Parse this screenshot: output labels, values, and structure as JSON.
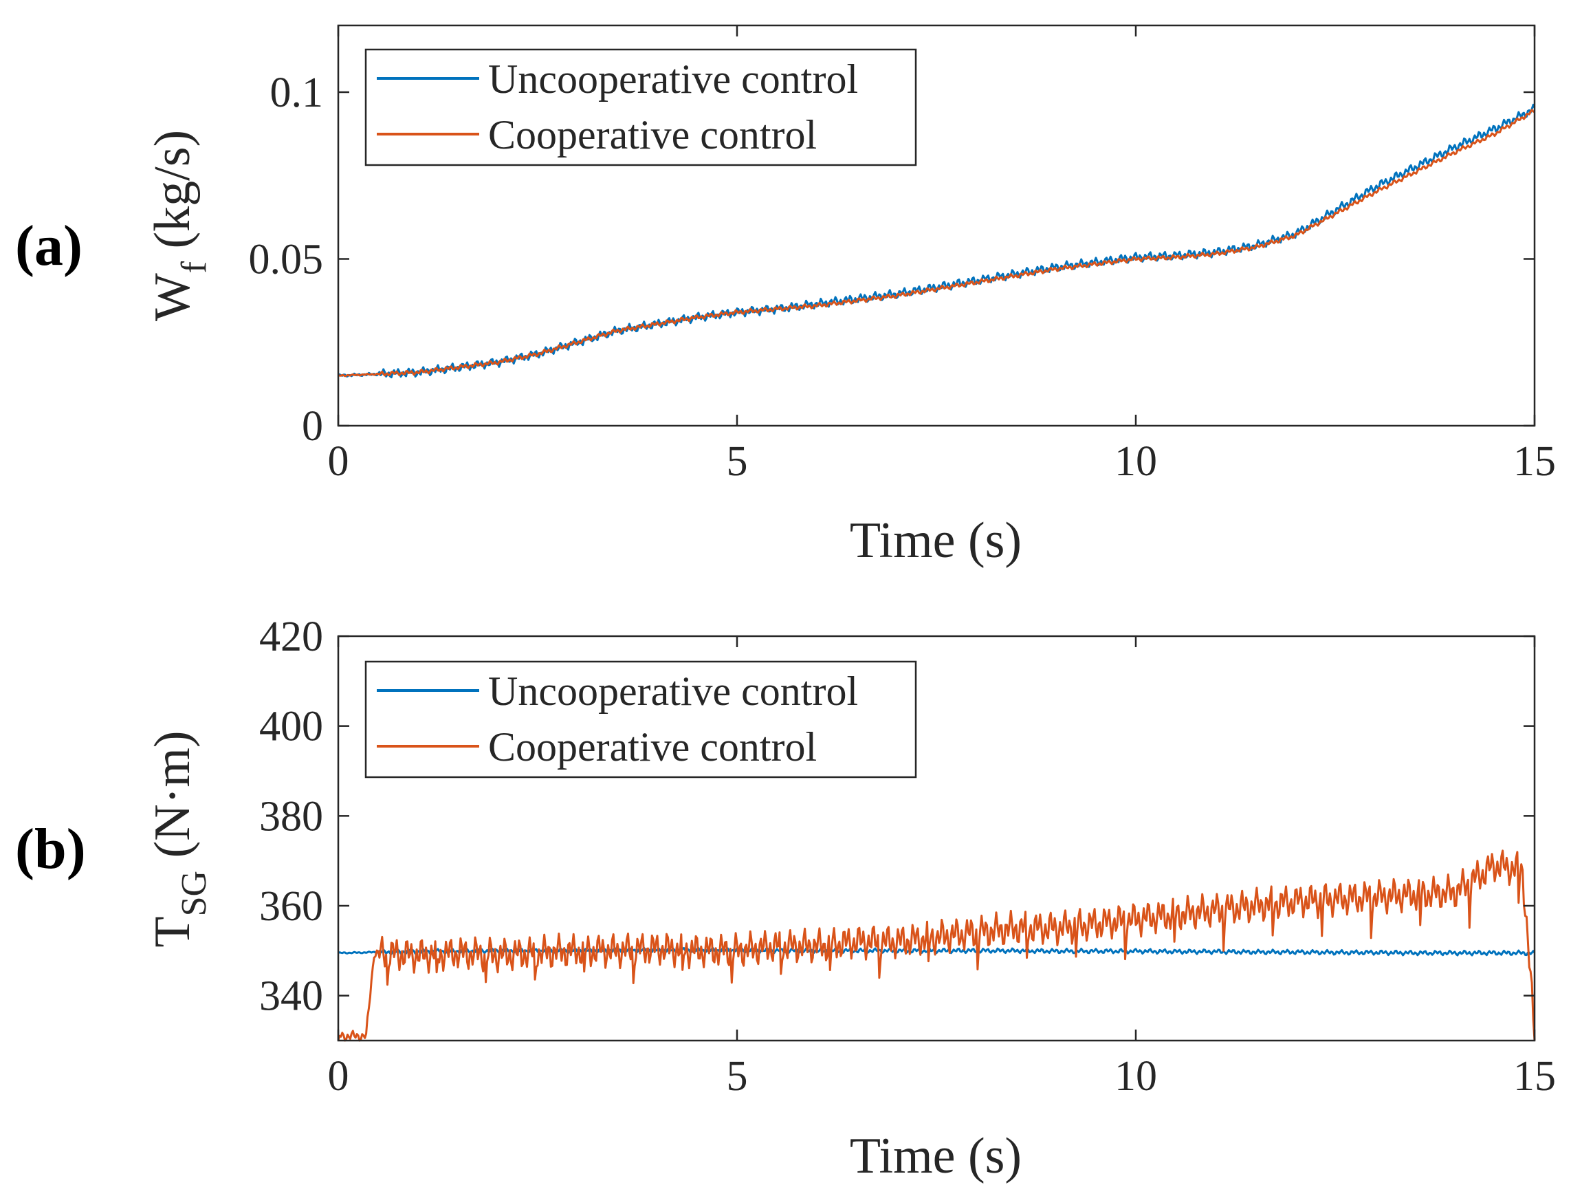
{
  "figure": {
    "panels": [
      "(a)",
      "(b)"
    ]
  },
  "chart_data": [
    {
      "type": "line",
      "panel_label": "(a)",
      "title": "",
      "xlabel": "Time (s)",
      "ylabel_main": "W",
      "ylabel_sub": "f",
      "ylabel_unit": " (kg/s)",
      "xlim": [
        0,
        15
      ],
      "ylim": [
        0,
        0.12
      ],
      "xticks": [
        0,
        5,
        10,
        15
      ],
      "xtick_labels": [
        "0",
        "5",
        "10",
        "15"
      ],
      "yticks": [
        0,
        0.05,
        0.1
      ],
      "ytick_labels": [
        "0",
        "0.05",
        "0.1"
      ],
      "grid": false,
      "legend_position": "top-left",
      "x": [
        0,
        0.5,
        1,
        1.5,
        2,
        2.5,
        3,
        3.5,
        4,
        4.5,
        5,
        5.5,
        6,
        6.5,
        7,
        7.5,
        8,
        8.5,
        9,
        9.5,
        10,
        10.5,
        11,
        11.5,
        12,
        12.5,
        13,
        13.5,
        14,
        14.5,
        15
      ],
      "series": [
        {
          "name": "Uncooperative control",
          "color": "#0072BD",
          "values": [
            0.015,
            0.0155,
            0.016,
            0.0175,
            0.019,
            0.0215,
            0.025,
            0.0285,
            0.0305,
            0.0325,
            0.034,
            0.035,
            0.0365,
            0.038,
            0.0395,
            0.0415,
            0.0435,
            0.0455,
            0.0475,
            0.049,
            0.0505,
            0.051,
            0.052,
            0.054,
            0.0575,
            0.0645,
            0.0715,
            0.0775,
            0.0835,
            0.089,
            0.095
          ]
        },
        {
          "name": "Cooperative control",
          "color": "#D95319",
          "values": [
            0.015,
            0.0155,
            0.016,
            0.0175,
            0.019,
            0.0215,
            0.025,
            0.0285,
            0.0305,
            0.0325,
            0.034,
            0.035,
            0.036,
            0.0375,
            0.039,
            0.041,
            0.043,
            0.045,
            0.047,
            0.0485,
            0.05,
            0.0505,
            0.0515,
            0.0535,
            0.057,
            0.0635,
            0.07,
            0.076,
            0.082,
            0.0875,
            0.0945
          ]
        }
      ]
    },
    {
      "type": "line",
      "panel_label": "(b)",
      "title": "",
      "xlabel": "Time (s)",
      "ylabel_main": "T",
      "ylabel_sub": "SG",
      "ylabel_unit": " (N·m)",
      "xlim": [
        0,
        15
      ],
      "ylim": [
        330,
        420
      ],
      "xticks": [
        0,
        5,
        10,
        15
      ],
      "xtick_labels": [
        "0",
        "5",
        "10",
        "15"
      ],
      "yticks": [
        340,
        360,
        380,
        400,
        420
      ],
      "ytick_labels": [
        "340",
        "360",
        "380",
        "400",
        "420"
      ],
      "grid": false,
      "legend_position": "top-left",
      "x": [
        0,
        0.35,
        0.45,
        1,
        1.5,
        2,
        2.5,
        3,
        3.5,
        4,
        4.5,
        5,
        5.5,
        6,
        6.5,
        7,
        7.5,
        8,
        8.5,
        9,
        9.5,
        10,
        10.5,
        11,
        11.5,
        12,
        12.5,
        13,
        13.5,
        14,
        14.5,
        14.85,
        15
      ],
      "series": [
        {
          "name": "Uncooperative control",
          "color": "#0072BD",
          "values": [
            349.5,
            349.6,
            349.7,
            349.8,
            349.9,
            350,
            350,
            350,
            350.1,
            350.1,
            350.1,
            350.1,
            350,
            350,
            350,
            350,
            350,
            350,
            350,
            349.9,
            349.9,
            349.9,
            349.8,
            349.8,
            349.7,
            349.7,
            349.6,
            349.6,
            349.5,
            349.5,
            349.5,
            349.5,
            349.4
          ]
        },
        {
          "name": "Cooperative control",
          "color": "#D95319",
          "values": [
            331,
            331,
            349.5,
            349,
            349.5,
            349,
            349.5,
            350,
            350,
            350.5,
            350,
            350,
            351,
            351,
            352,
            352,
            353,
            354,
            355,
            355,
            356,
            357,
            358,
            359,
            360,
            361,
            361.5,
            362,
            362.5,
            363,
            369,
            368,
            331
          ]
        }
      ]
    }
  ]
}
